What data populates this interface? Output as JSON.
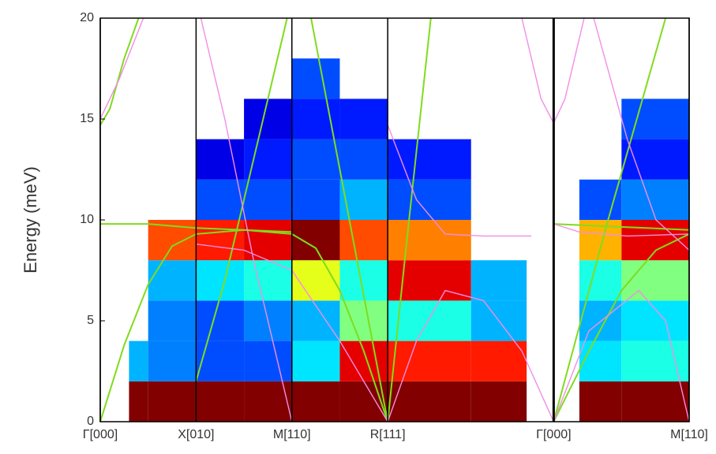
{
  "chart_data": {
    "type": "line",
    "ylabel": "Energy (meV)",
    "xlim": [
      0,
      6.146
    ],
    "ylim": [
      0,
      20
    ],
    "yticks": [
      0,
      5,
      10,
      15,
      20
    ],
    "xticks": [
      {
        "value": 0,
        "label": "Γ[000]"
      },
      {
        "value": 1,
        "label": "X[010]"
      },
      {
        "value": 2,
        "label": "M[110]"
      },
      {
        "value": 3,
        "label": "R[111]"
      },
      {
        "value": 4.732,
        "label": "Γ[000]"
      },
      {
        "value": 6.146,
        "label": "M[110]"
      }
    ],
    "heatmap": {
      "xedges": [
        0.3,
        0.5,
        1,
        1.5,
        2,
        2.5,
        3,
        3.87,
        4.45,
        5.0,
        5.44,
        6.146
      ],
      "yedges": [
        0,
        2,
        4,
        6,
        8,
        10,
        12,
        14,
        16,
        18,
        20
      ],
      "values": [
        [
          1.0,
          0.3,
          null,
          null,
          null,
          null,
          null,
          null,
          null,
          null
        ],
        [
          1.0,
          0.25,
          0.25,
          0.3,
          0.8,
          null,
          null,
          null,
          null,
          null
        ],
        [
          1.0,
          0.2,
          0.2,
          0.35,
          0.85,
          0.2,
          0.1,
          null,
          null,
          null
        ],
        [
          1.0,
          0.2,
          0.25,
          0.4,
          0.9,
          0.2,
          0.15,
          0.1,
          null,
          null
        ],
        [
          1.0,
          0.35,
          0.3,
          0.6,
          0.95,
          0.2,
          0.2,
          0.15,
          0.2,
          null
        ],
        [
          1.0,
          0.9,
          0.5,
          0.4,
          0.8,
          0.3,
          0.2,
          0.15,
          null,
          null
        ],
        [
          1.0,
          0.85,
          0.4,
          0.9,
          0.75,
          0.2,
          0.15,
          null,
          null,
          null
        ],
        [
          1.0,
          0.85,
          0.3,
          0.3,
          null,
          null,
          null,
          null,
          null,
          null
        ],
        [
          null,
          null,
          null,
          null,
          null,
          null,
          null,
          null,
          null,
          null
        ],
        [
          1.0,
          0.35,
          0.3,
          0.4,
          0.7,
          0.2,
          null,
          null,
          null,
          null
        ],
        [
          1.0,
          0.4,
          0.35,
          0.5,
          0.9,
          0.25,
          0.15,
          0.2,
          null,
          null
        ]
      ]
    },
    "series": [
      {
        "color": "#7fdc1e",
        "x": [
          0,
          0.25,
          0.5,
          0.75,
          1,
          1.5,
          2
        ],
        "values": [
          0,
          3.8,
          6.8,
          8.7,
          9.3,
          9.5,
          9.3
        ]
      },
      {
        "color": "#7fdc1e",
        "x": [
          0,
          0.5,
          1,
          1.5,
          2
        ],
        "values": [
          9.8,
          9.8,
          9.6,
          9.5,
          9.4
        ]
      },
      {
        "color": "#7fdc1e",
        "x": [
          0,
          0.1,
          0.25,
          0.4
        ],
        "values": [
          14.7,
          15.5,
          18,
          20
        ]
      },
      {
        "color": "#7fdc1e",
        "x": [
          1,
          1.3,
          1.6,
          1.95
        ],
        "values": [
          2,
          7,
          13,
          20
        ]
      },
      {
        "color": "#7fdc1e",
        "x": [
          2,
          2.25,
          2.5,
          2.75,
          3
        ],
        "values": [
          9.3,
          8.6,
          6.5,
          3.5,
          0
        ]
      },
      {
        "color": "#7fdc1e",
        "x": [
          2.2,
          2.6,
          3
        ],
        "values": [
          20,
          10,
          0
        ]
      },
      {
        "color": "#7fdc1e",
        "x": [
          3,
          3.2,
          3.45
        ],
        "values": [
          0,
          9,
          20
        ]
      },
      {
        "color": "#7fdc1e",
        "x": [
          4.732,
          5.1,
          5.44,
          5.8,
          6.146
        ],
        "values": [
          0,
          3.5,
          6.5,
          8.5,
          9.3
        ]
      },
      {
        "color": "#7fdc1e",
        "x": [
          4.732,
          5.3,
          5.9
        ],
        "values": [
          0,
          10,
          20
        ]
      },
      {
        "color": "#7fdc1e",
        "x": [
          4.732,
          5.2,
          5.7,
          6.146
        ],
        "values": [
          9.8,
          9.7,
          9.6,
          9.5
        ]
      },
      {
        "color": "#f28de6",
        "x": [
          0,
          0.2,
          0.45
        ],
        "values": [
          15,
          17,
          20
        ]
      },
      {
        "color": "#f28de6",
        "x": [
          1.05,
          1.3,
          1.6,
          1.85,
          2
        ],
        "values": [
          20,
          15,
          8,
          3,
          0
        ]
      },
      {
        "color": "#f28de6",
        "x": [
          1,
          1.5,
          2,
          2.5,
          3
        ],
        "values": [
          8.8,
          8.5,
          7.5,
          4,
          0
        ]
      },
      {
        "color": "#f28de6",
        "x": [
          3,
          3.3,
          3.6,
          4,
          4.4,
          4.732
        ],
        "values": [
          0,
          4,
          6.5,
          6,
          3.5,
          0
        ]
      },
      {
        "color": "#f28de6",
        "x": [
          3,
          3.3,
          3.6,
          4,
          4.5
        ],
        "values": [
          14.7,
          11,
          9.3,
          9.2,
          9.2
        ]
      },
      {
        "color": "#f28de6",
        "x": [
          4.4,
          4.6,
          4.732,
          4.85,
          5.05
        ],
        "values": [
          20,
          16,
          14.8,
          16,
          20
        ]
      },
      {
        "color": "#f28de6",
        "x": [
          4.732,
          5,
          5.5,
          6.146
        ],
        "values": [
          9.8,
          9.4,
          9.2,
          9.3
        ]
      },
      {
        "color": "#f28de6",
        "x": [
          4.732,
          5.1,
          5.62,
          5.9,
          6.146
        ],
        "values": [
          0,
          4.5,
          6.5,
          5,
          0
        ]
      },
      {
        "color": "#f28de6",
        "x": [
          5.15,
          5.5,
          5.8,
          6.146
        ],
        "values": [
          20,
          14,
          10,
          8.5
        ]
      }
    ]
  }
}
